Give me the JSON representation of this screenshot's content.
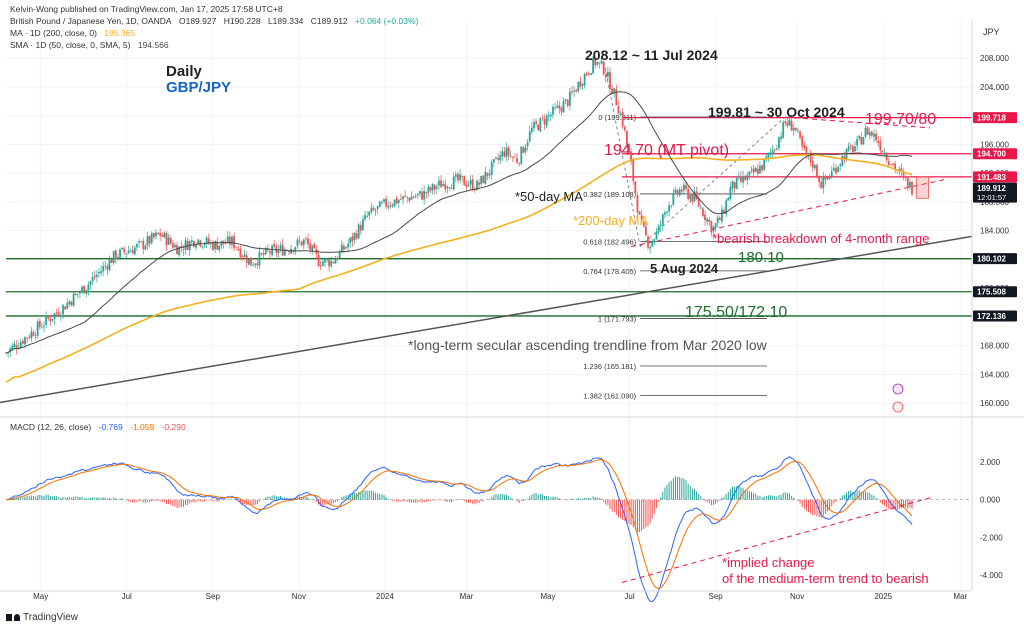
{
  "header": {
    "publisher": "Kelvin-Wong published on TradingView.com, Jan 17, 2025 17:58 UTC+8",
    "symbol": "British Pound / Japanese Yen, 1D, OANDA",
    "ohlc": [
      "O189.927",
      "H190.228",
      "L189.334",
      "C189.912",
      "+0.064 (+0.03%)"
    ],
    "ma_label": "MA · 1D (200, close, 0)",
    "ma_value": "195.365",
    "sma_label": "SMA · 1D (50, close, 0, SMA, 5)",
    "sma_value": "194.566",
    "macd_label": "MACD (12, 26, close)",
    "macd_values": [
      "-0.769",
      "-1.059",
      "-0.290"
    ]
  },
  "currency": "JPY",
  "footer_logo": "TradingView",
  "colors": {
    "up": "#26a69a",
    "down": "#ef5350",
    "ma200": "#f5b020",
    "sma50": "#4a4a4a",
    "macd": "#2962ff",
    "signal": "#ff6d00",
    "annotation_red": "#e91e63",
    "annotation_green": "#1b6e2a",
    "annotation_blue": "#1565c0",
    "dark": "#212121"
  },
  "annotations": {
    "daily": "Daily",
    "pair": "GBP/JPY",
    "peak": "208.12 ~ 11 Jul 2024",
    "oct_high": "199.81 ~ 30 Oct 2024",
    "resistance": "199.70/80",
    "pivot": "194.70 (MT pivot)",
    "ma50": "*50-day MA",
    "ma200": "*200-day MA",
    "breakdown": "*bearish breakdown of 4-month range",
    "support1": "180.10",
    "aug_low": "5 Aug 2024",
    "support2": "175.50/172.10",
    "trendline": "*long-term secular ascending trendline from Mar 2020 low",
    "macd_note_1": "*implied change",
    "macd_note_2": "of the medium-term trend to bearish"
  },
  "chart_data": {
    "type": "candlestick",
    "symbol": "GBP/JPY",
    "timeframe": "1D",
    "x_axis_labels": [
      "May",
      "Jul",
      "Sep",
      "Nov",
      "2024",
      "Mar",
      "May",
      "Jul",
      "Sep",
      "Nov",
      "2025",
      "Mar"
    ],
    "y_axis_ticks": [
      "208.000",
      "204.000",
      "200.000",
      "196.000",
      "192.000",
      "188.000",
      "184.000",
      "180.000",
      "176.000",
      "172.000",
      "168.000",
      "164.000",
      "160.000"
    ],
    "ylim": [
      158.5,
      213.3
    ],
    "price_markers": [
      {
        "label": "199.718",
        "value": 199.718,
        "style": "red"
      },
      {
        "label": "194.700",
        "value": 194.7,
        "style": "red"
      },
      {
        "label": "191.483",
        "value": 191.483,
        "style": "red"
      },
      {
        "label": "189.912",
        "sublabel": "12:01:57",
        "value": 189.912,
        "style": "dark"
      },
      {
        "label": "180.102",
        "value": 180.102,
        "style": "dark"
      },
      {
        "label": "175.508",
        "value": 175.508,
        "style": "dark"
      },
      {
        "label": "172.136",
        "value": 172.136,
        "style": "dark"
      }
    ],
    "horizontal_levels": [
      {
        "value": 199.718,
        "color": "red"
      },
      {
        "value": 194.7,
        "color": "red"
      },
      {
        "value": 191.483,
        "color": "red"
      },
      {
        "value": 180.102,
        "color": "green"
      },
      {
        "value": 175.508,
        "color": "green"
      },
      {
        "value": 172.136,
        "color": "green"
      }
    ],
    "fibonacci": [
      {
        "label": "0 (199.811)",
        "value": 199.811
      },
      {
        "label": "0.382 (189.108)",
        "value": 189.108
      },
      {
        "label": "0.618 (182.496)",
        "value": 182.496
      },
      {
        "label": "0.764 (178.405)",
        "value": 178.405
      },
      {
        "label": "1 (171.793)",
        "value": 171.793
      },
      {
        "label": "1.236 (165.181)",
        "value": 165.181
      },
      {
        "label": "1.382 (161.090)",
        "value": 161.09
      }
    ],
    "macd_axis_ticks": [
      "2.000",
      "0.000",
      "-2.000",
      "-4.000"
    ],
    "macd_ylim": [
      -4.8,
      3.6
    ],
    "macd_last": {
      "macd": -0.769,
      "signal": -1.059,
      "histogram": -0.29
    },
    "price_path": [
      [
        0,
        167.0
      ],
      [
        0.03,
        170.0
      ],
      [
        0.06,
        173.0
      ],
      [
        0.09,
        176.5
      ],
      [
        0.12,
        180.5
      ],
      [
        0.15,
        182.0
      ],
      [
        0.17,
        183.5
      ],
      [
        0.19,
        181.5
      ],
      [
        0.21,
        182.8
      ],
      [
        0.23,
        182.0
      ],
      [
        0.25,
        182.5
      ],
      [
        0.27,
        179.5
      ],
      [
        0.29,
        181.0
      ],
      [
        0.31,
        181.5
      ],
      [
        0.33,
        182.6
      ],
      [
        0.345,
        179.8
      ],
      [
        0.36,
        179.7
      ],
      [
        0.38,
        182.5
      ],
      [
        0.4,
        186.2
      ],
      [
        0.42,
        187.8
      ],
      [
        0.44,
        188.5
      ],
      [
        0.46,
        189.0
      ],
      [
        0.48,
        190.5
      ],
      [
        0.5,
        191.0
      ],
      [
        0.52,
        190.2
      ],
      [
        0.535,
        192.5
      ],
      [
        0.55,
        195.0
      ],
      [
        0.565,
        193.8
      ],
      [
        0.58,
        198.0
      ],
      [
        0.6,
        200.0
      ],
      [
        0.62,
        202.0
      ],
      [
        0.635,
        205.0
      ],
      [
        0.65,
        207.5
      ],
      [
        0.66,
        206.5
      ],
      [
        0.67,
        203.5
      ],
      [
        0.68,
        199.5
      ],
      [
        0.69,
        193.0
      ],
      [
        0.7,
        185.0
      ],
      [
        0.71,
        182.0
      ],
      [
        0.72,
        184.0
      ],
      [
        0.73,
        187.5
      ],
      [
        0.745,
        189.8
      ],
      [
        0.76,
        188.5
      ],
      [
        0.77,
        186.5
      ],
      [
        0.78,
        184.2
      ],
      [
        0.79,
        186.0
      ],
      [
        0.8,
        190.0
      ],
      [
        0.82,
        191.5
      ],
      [
        0.835,
        193.0
      ],
      [
        0.85,
        196.0
      ],
      [
        0.86,
        199.0
      ],
      [
        0.87,
        198.5
      ],
      [
        0.88,
        195.0
      ],
      [
        0.89,
        193.5
      ],
      [
        0.9,
        190.5
      ],
      [
        0.91,
        191.8
      ],
      [
        0.925,
        194.5
      ],
      [
        0.94,
        196.0
      ],
      [
        0.95,
        198.0
      ],
      [
        0.96,
        197.0
      ],
      [
        0.97,
        194.8
      ],
      [
        0.98,
        193.0
      ],
      [
        0.99,
        191.3
      ],
      [
        1.0,
        189.9
      ]
    ]
  }
}
